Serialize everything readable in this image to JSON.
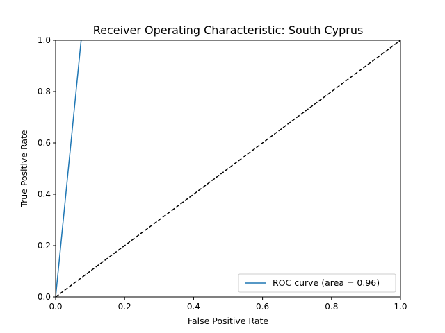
{
  "chart_data": {
    "type": "line",
    "title": "Receiver Operating Characteristic: South Cyprus",
    "xlabel": "False Positive Rate",
    "ylabel": "True Positive Rate",
    "xlim": [
      0,
      1
    ],
    "ylim": [
      0,
      1
    ],
    "xticks": [
      "0.0",
      "0.2",
      "0.4",
      "0.6",
      "0.8",
      "1.0"
    ],
    "yticks": [
      "0.0",
      "0.2",
      "0.4",
      "0.6",
      "0.8",
      "1.0"
    ],
    "grid": false,
    "legend_position": "lower right",
    "series": [
      {
        "name": "ROC curve (area = 0.96)",
        "color": "#1f77b4",
        "style": "solid",
        "x": [
          0.0,
          0.074
        ],
        "y": [
          0.0,
          1.0
        ]
      },
      {
        "color": "#000000",
        "style": "dashed",
        "x": [
          0.0,
          1.0
        ],
        "y": [
          0.0,
          1.0
        ]
      }
    ]
  }
}
